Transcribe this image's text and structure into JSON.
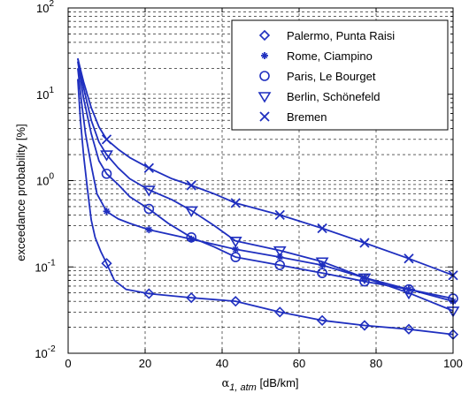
{
  "chart_data": {
    "type": "line",
    "title": "",
    "xlabel": {
      "base": "α",
      "sub": "1, atm",
      "unit": " [dB/km]"
    },
    "ylabel": "exceedance probability [%]",
    "xlim": [
      0,
      100
    ],
    "ylim": [
      0.01,
      100
    ],
    "yscale": "log",
    "grid": "dashed",
    "legend_position": "top-right",
    "x_ticks": [
      0,
      20,
      40,
      60,
      80,
      100
    ],
    "x_tick_labels": [
      "0",
      "20",
      "40",
      "60",
      "80",
      "100"
    ],
    "y_ticks": [
      0.01,
      0.1,
      1,
      10,
      100
    ],
    "y_tick_labels": [
      {
        "base": "10",
        "exp": "-2"
      },
      {
        "base": "10",
        "exp": "-1"
      },
      {
        "base": "10",
        "exp": "0"
      },
      {
        "base": "10",
        "exp": "1"
      },
      {
        "base": "10",
        "exp": "2"
      }
    ],
    "line_color": "#1f2fbf",
    "series": [
      {
        "name": "Palermo, Punta Raisi",
        "marker": "diamond",
        "points": [
          [
            2.5,
            15
          ],
          [
            3.2,
            5
          ],
          [
            4,
            2
          ],
          [
            5,
            0.8
          ],
          [
            6,
            0.35
          ],
          [
            7,
            0.22
          ],
          [
            8.5,
            0.15
          ],
          [
            10,
            0.11
          ],
          [
            12,
            0.07
          ],
          [
            15,
            0.055
          ],
          [
            21,
            0.049
          ],
          [
            32,
            0.044
          ],
          [
            43.5,
            0.04
          ],
          [
            55,
            0.03
          ],
          [
            66,
            0.024
          ],
          [
            77,
            0.021
          ],
          [
            88.5,
            0.019
          ],
          [
            100,
            0.0165
          ]
        ],
        "marker_points": [
          [
            10,
            0.11
          ],
          [
            21,
            0.049
          ],
          [
            32,
            0.044
          ],
          [
            43.5,
            0.04
          ],
          [
            55,
            0.03
          ],
          [
            66,
            0.024
          ],
          [
            77,
            0.021
          ],
          [
            88.5,
            0.019
          ],
          [
            100,
            0.0165
          ]
        ]
      },
      {
        "name": "Rome, Ciampino",
        "marker": "star",
        "points": [
          [
            2.5,
            20
          ],
          [
            3.5,
            8
          ],
          [
            4.5,
            3.5
          ],
          [
            6,
            1.5
          ],
          [
            7.5,
            0.7
          ],
          [
            10,
            0.44
          ],
          [
            13,
            0.36
          ],
          [
            16,
            0.32
          ],
          [
            21,
            0.27
          ],
          [
            32,
            0.21
          ],
          [
            43.5,
            0.16
          ],
          [
            55,
            0.13
          ],
          [
            66,
            0.105
          ],
          [
            77,
            0.075
          ],
          [
            88.5,
            0.055
          ],
          [
            100,
            0.04
          ]
        ],
        "marker_points": [
          [
            10,
            0.44
          ],
          [
            21,
            0.27
          ],
          [
            32,
            0.21
          ],
          [
            43.5,
            0.16
          ],
          [
            55,
            0.13
          ],
          [
            66,
            0.105
          ],
          [
            77,
            0.075
          ],
          [
            88.5,
            0.055
          ],
          [
            100,
            0.04
          ]
        ]
      },
      {
        "name": "Paris, Le Bourget",
        "marker": "circle",
        "points": [
          [
            2.5,
            24
          ],
          [
            4,
            9
          ],
          [
            6,
            3.5
          ],
          [
            8,
            1.7
          ],
          [
            10,
            1.2
          ],
          [
            13,
            0.9
          ],
          [
            16,
            0.65
          ],
          [
            21,
            0.47
          ],
          [
            26,
            0.32
          ],
          [
            32,
            0.22
          ],
          [
            38,
            0.17
          ],
          [
            43.5,
            0.13
          ],
          [
            55,
            0.105
          ],
          [
            66,
            0.085
          ],
          [
            77,
            0.068
          ],
          [
            88.5,
            0.055
          ],
          [
            100,
            0.043
          ]
        ],
        "marker_points": [
          [
            10,
            1.2
          ],
          [
            21,
            0.47
          ],
          [
            32,
            0.22
          ],
          [
            43.5,
            0.13
          ],
          [
            55,
            0.105
          ],
          [
            66,
            0.085
          ],
          [
            77,
            0.068
          ],
          [
            88.5,
            0.055
          ],
          [
            100,
            0.043
          ]
        ]
      },
      {
        "name": "Berlin, Schönefeld",
        "marker": "triangle-down",
        "points": [
          [
            2.5,
            26
          ],
          [
            4,
            12
          ],
          [
            6,
            5
          ],
          [
            8,
            2.8
          ],
          [
            10,
            2.0
          ],
          [
            13,
            1.4
          ],
          [
            16,
            1.05
          ],
          [
            21,
            0.78
          ],
          [
            27,
            0.6
          ],
          [
            32,
            0.45
          ],
          [
            38,
            0.3
          ],
          [
            43.5,
            0.2
          ],
          [
            55,
            0.155
          ],
          [
            66,
            0.115
          ],
          [
            77,
            0.075
          ],
          [
            88.5,
            0.05
          ],
          [
            100,
            0.031
          ]
        ],
        "marker_points": [
          [
            10,
            2.0
          ],
          [
            21,
            0.78
          ],
          [
            32,
            0.45
          ],
          [
            43.5,
            0.2
          ],
          [
            55,
            0.155
          ],
          [
            66,
            0.115
          ],
          [
            77,
            0.075
          ],
          [
            88.5,
            0.05
          ],
          [
            100,
            0.031
          ]
        ]
      },
      {
        "name": "Bremen",
        "marker": "x",
        "points": [
          [
            2.5,
            26
          ],
          [
            4,
            14
          ],
          [
            6,
            7
          ],
          [
            8,
            4.2
          ],
          [
            10,
            3.0
          ],
          [
            13,
            2.3
          ],
          [
            16,
            1.85
          ],
          [
            21,
            1.4
          ],
          [
            27,
            1.05
          ],
          [
            32,
            0.88
          ],
          [
            38,
            0.7
          ],
          [
            43.5,
            0.55
          ],
          [
            55,
            0.4
          ],
          [
            66,
            0.28
          ],
          [
            77,
            0.19
          ],
          [
            88.5,
            0.125
          ],
          [
            100,
            0.08
          ]
        ],
        "marker_points": [
          [
            10,
            3.0
          ],
          [
            21,
            1.4
          ],
          [
            32,
            0.88
          ],
          [
            43.5,
            0.55
          ],
          [
            55,
            0.4
          ],
          [
            66,
            0.28
          ],
          [
            77,
            0.19
          ],
          [
            88.5,
            0.125
          ],
          [
            100,
            0.08
          ]
        ]
      }
    ]
  }
}
